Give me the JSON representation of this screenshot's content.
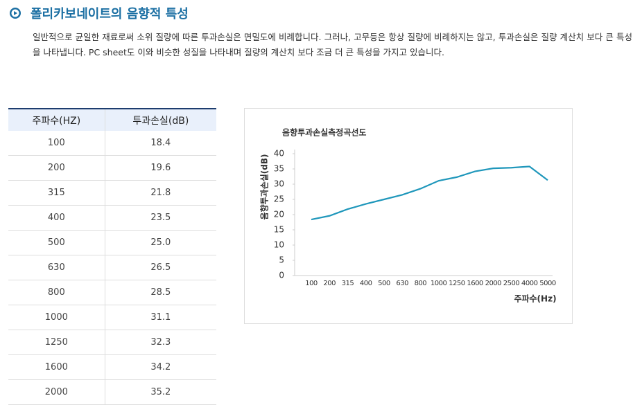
{
  "header": {
    "title": "폴리카보네이트의 음향적 특성"
  },
  "paragraph": "일반적으로 균일한 재료로써 소위 질량에 따른 투과손실은 면밀도에 비례합니다. 그러나, 고무등은 항상 질량에 비례하지는 않고, 투과손실은 질량 계산치 보다 큰 특성을 나타냅니다. PC sheet도 이와 비슷한 성질을 나타내며 질량의 계산치 보다 조금 더 큰 특성을 가지고 있습니다.",
  "table": {
    "headers": [
      "주파수(HZ)",
      "투과손실(dB)"
    ],
    "rows": [
      [
        "100",
        "18.4"
      ],
      [
        "200",
        "19.6"
      ],
      [
        "315",
        "21.8"
      ],
      [
        "400",
        "23.5"
      ],
      [
        "500",
        "25.0"
      ],
      [
        "630",
        "26.5"
      ],
      [
        "800",
        "28.5"
      ],
      [
        "1000",
        "31.1"
      ],
      [
        "1250",
        "32.3"
      ],
      [
        "1600",
        "34.2"
      ],
      [
        "2000",
        "35.2"
      ]
    ]
  },
  "chart_data": {
    "type": "line",
    "title": "음향투과손실측정곡선도",
    "x_label": "주파수(Hz)",
    "y_label": "음향투과손실(dB)",
    "categories": [
      "100",
      "200",
      "315",
      "400",
      "500",
      "630",
      "800",
      "1000",
      "1250",
      "1600",
      "2000",
      "2500",
      "4000",
      "5000"
    ],
    "values": [
      18.4,
      19.6,
      21.8,
      23.5,
      25.0,
      26.5,
      28.5,
      31.1,
      32.3,
      34.2,
      35.2,
      35.4,
      35.8,
      31.3
    ],
    "color": "#1f97bb",
    "ylim": [
      0,
      40
    ],
    "yticks": [
      0,
      5,
      10,
      15,
      20,
      25,
      30,
      35,
      40
    ]
  }
}
